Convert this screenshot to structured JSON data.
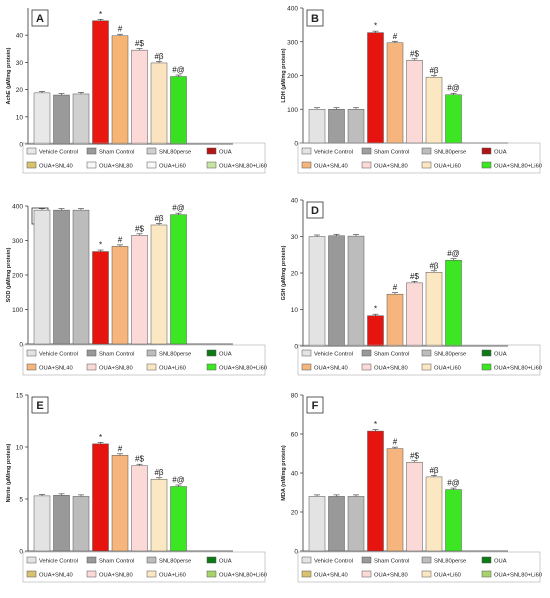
{
  "chart_data": [
    {
      "type": "bar",
      "panel_label": "A",
      "ylabel": "AchE (µM/mg protein)",
      "ylim": [
        0,
        50
      ],
      "yticks": [
        0,
        10,
        20,
        30,
        40
      ],
      "categories": [
        "Vehicle Control",
        "Sham Control",
        "SNL80perse",
        "OUA",
        "OUA+SNL40",
        "OUA+SNL80",
        "OUA+Li60",
        "OUA+SNL80+Li60"
      ],
      "values": [
        18.8,
        18.0,
        18.4,
        45.3,
        39.8,
        34.5,
        29.8,
        24.8
      ],
      "annotations": [
        "",
        "",
        "",
        "*",
        "#",
        "#$",
        "#β",
        "#@"
      ],
      "legend": [
        "Vehicle Control",
        "Sham Control",
        "SNL80perse",
        "OUA",
        "OUA+SNL40",
        "OUA+SNL80",
        "OUA+Li60",
        "OUA+SNL80+Li60"
      ],
      "colors": [
        "#e8e8e8",
        "#9a9a9a",
        "#d0d0d0",
        "#e8170f",
        "#f6b574",
        "#fbd9d6",
        "#fbe3bf",
        "#39e021"
      ],
      "legend_colors": [
        "#e8e8e8",
        "#9a9a9a",
        "#cfcfcf",
        "#b41414",
        "#d8c26e",
        "#f8f8f8",
        "#f8f8f8",
        "#c7e5a2"
      ]
    },
    {
      "type": "bar",
      "panel_label": "B",
      "ylabel": "LDH (µM/mg protein)",
      "ylim": [
        0,
        400
      ],
      "yticks": [
        0,
        100,
        200,
        300,
        400
      ],
      "categories": [
        "Vehicle Control",
        "Sham Control",
        "SNL80perse",
        "OUA",
        "OUA+SNL40",
        "OUA+SNL80",
        "OUA+Li60",
        "OUA+SNL80+Li60"
      ],
      "values": [
        100,
        100,
        100,
        327,
        297,
        245,
        195,
        143
      ],
      "annotations": [
        "",
        "",
        "",
        "*",
        "#",
        "#$",
        "#β",
        "#@"
      ],
      "legend": [
        "Vehicle Control",
        "Sham Control",
        "SNL80perse",
        "OUA",
        "OUA+SNL40",
        "OUA+SNL80",
        "OUA+Li60",
        "OUA+SNL80+Li60"
      ],
      "colors": [
        "#e3e3e3",
        "#9e9e9e",
        "#bdbdbd",
        "#e5140f",
        "#f5b57d",
        "#fad9d7",
        "#fbe7c2",
        "#3ce622"
      ],
      "legend_colors": [
        "#e3e3e3",
        "#9e9e9e",
        "#bdbdbd",
        "#b01414",
        "#f5b57d",
        "#fad9d7",
        "#fbe7c2",
        "#3ce622"
      ]
    },
    {
      "type": "bar",
      "panel_label": "C",
      "ylabel": "SOD (µM/mg protein)",
      "ylim": [
        0,
        400
      ],
      "yticks": [
        0,
        100,
        200,
        300,
        400
      ],
      "categories": [
        "Vehicle Control",
        "Sham Control",
        "SNL80perse",
        "OUA",
        "OUA+SNL40",
        "OUA+SNL80",
        "OUA+Li60",
        "OUA+SNL80+Li60"
      ],
      "values": [
        388,
        388,
        388,
        268,
        283,
        315,
        345,
        375
      ],
      "annotations": [
        "",
        "",
        "",
        "*",
        "#",
        "#$",
        "#β",
        "#@"
      ],
      "legend": [
        "Vehicle Control",
        "Sham Control",
        "SNL80perse",
        "OUA",
        "OUA+SNL40",
        "OUA+SNL80",
        "OUA+Li60",
        "OUA+SNL80+Li60"
      ],
      "colors": [
        "#e3e3e3",
        "#999999",
        "#bcbcbc",
        "#e5140f",
        "#f5b57d",
        "#fad9d7",
        "#fbe7c2",
        "#3ce622"
      ],
      "legend_colors": [
        "#e3e3e3",
        "#999999",
        "#bcbcbc",
        "#0d7a16",
        "#f5b57d",
        "#fad9d7",
        "#fbe7c2",
        "#3ce622"
      ]
    },
    {
      "type": "bar",
      "panel_label": "D",
      "ylabel": "GSH (µM/mg protein)",
      "ylim": [
        0,
        40
      ],
      "yticks": [
        0,
        10,
        20,
        30,
        40
      ],
      "categories": [
        "Vehicle Control",
        "Sham Control",
        "SNL80perse",
        "OUA",
        "OUA+SNL40",
        "OUA+SNL80",
        "OUA+Li60",
        "OUA+SNL80+Li60"
      ],
      "values": [
        30,
        30.2,
        30.1,
        8.3,
        14.2,
        17.3,
        20.2,
        23.5
      ],
      "annotations": [
        "",
        "",
        "",
        "*",
        "#",
        "#$",
        "#β",
        "#@"
      ],
      "legend": [
        "Vehicle Control",
        "Sham Control",
        "SNL80perse",
        "OUA",
        "OUA+SNL40",
        "OUA+SNL80",
        "OUA+Li60",
        "OUA+SNL80+Li60"
      ],
      "colors": [
        "#e3e3e3",
        "#999999",
        "#bcbcbc",
        "#e5140f",
        "#f5b57d",
        "#fad9d7",
        "#fbe7c2",
        "#3ce622"
      ],
      "legend_colors": [
        "#e3e3e3",
        "#999999",
        "#bcbcbc",
        "#0d7a16",
        "#f5b57d",
        "#fad9d7",
        "#fbe7c2",
        "#3ce622"
      ]
    },
    {
      "type": "bar",
      "panel_label": "E",
      "ylabel": "Nitrite (µM/mg protein)",
      "ylim": [
        0,
        15
      ],
      "yticks": [
        0,
        5,
        10,
        15
      ],
      "categories": [
        "Vehicle Control",
        "Sham Control",
        "SNL80perse",
        "OUA",
        "OUA+SNL40",
        "OUA+SNL80",
        "OUA+Li60",
        "OUA+SNL80+Li60"
      ],
      "values": [
        5.3,
        5.35,
        5.25,
        10.3,
        9.2,
        8.2,
        6.9,
        6.2
      ],
      "annotations": [
        "",
        "",
        "",
        "*",
        "#",
        "#$",
        "#β",
        "#@"
      ],
      "legend": [
        "Vehicle Control",
        "Sham Control",
        "SNL80perse",
        "OUA",
        "OUA+SNL40",
        "OUA+SNL80",
        "OUA+Li60",
        "OUA+SNL80+Li60"
      ],
      "colors": [
        "#e3e3e3",
        "#999999",
        "#bcbcbc",
        "#e5140f",
        "#f5b57d",
        "#fad9d7",
        "#fbe7c2",
        "#3ce622"
      ],
      "legend_colors": [
        "#e3e3e3",
        "#999999",
        "#bcbcbc",
        "#0d7a16",
        "#d8c26e",
        "#fad9d7",
        "#fbe7c2",
        "#a6d46a"
      ]
    },
    {
      "type": "bar",
      "panel_label": "F",
      "ylabel": "MDA (nM/mg protein)",
      "ylim": [
        0,
        80
      ],
      "yticks": [
        0,
        20,
        40,
        60,
        80
      ],
      "categories": [
        "Vehicle Control",
        "Sham Control",
        "SNL80perse",
        "OUA",
        "OUA+SNL40",
        "OUA+SNL80",
        "OUA+Li60",
        "OUA+SNL80+Li60"
      ],
      "values": [
        28,
        28,
        28,
        61.5,
        52.5,
        45.5,
        38,
        31.5
      ],
      "annotations": [
        "",
        "",
        "",
        "*",
        "#",
        "#$",
        "#β",
        "#@"
      ],
      "legend": [
        "Vehicle Control",
        "Sham Control",
        "SNL80perse",
        "OUA",
        "OUA+SNL40",
        "OUA+SNL80",
        "OUA+Li60",
        "OUA+SNL80+Li60"
      ],
      "colors": [
        "#e3e3e3",
        "#999999",
        "#bcbcbc",
        "#e5140f",
        "#f5b57d",
        "#fad9d7",
        "#fbe7c2",
        "#3ce622"
      ],
      "legend_colors": [
        "#e3e3e3",
        "#999999",
        "#bcbcbc",
        "#0d7a16",
        "#d8c26e",
        "#fad9d7",
        "#fbe7c2",
        "#a6d46a"
      ]
    }
  ]
}
